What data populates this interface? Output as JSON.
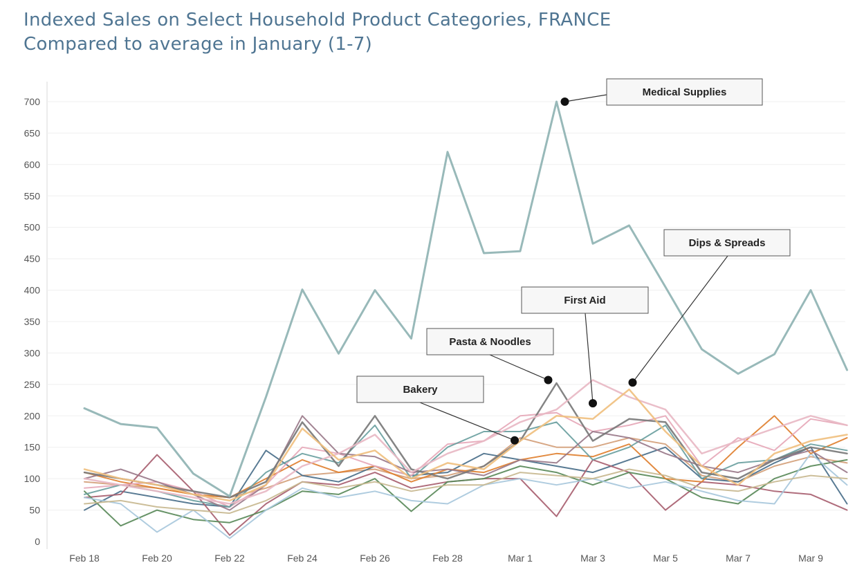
{
  "title": "Indexed Sales on Select Household Product Categories, FRANCE",
  "subtitle": "Compared to average in January (1-7)",
  "chart_data": {
    "type": "line",
    "x": [
      "Feb 18",
      "Feb 19",
      "Feb 20",
      "Feb 21",
      "Feb 22",
      "Feb 23",
      "Feb 24",
      "Feb 25",
      "Feb 26",
      "Feb 27",
      "Feb 28",
      "Feb 29",
      "Mar 1",
      "Mar 2",
      "Mar 3",
      "Mar 4",
      "Mar 5",
      "Mar 6",
      "Mar 7",
      "Mar 8",
      "Mar 9",
      "Mar 10"
    ],
    "x_tick_labels": [
      "Feb 18",
      "Feb 20",
      "Feb 22",
      "Feb 24",
      "Feb 26",
      "Feb 28",
      "Mar 1",
      "Mar 3",
      "Mar 5",
      "Mar 7",
      "Mar 9"
    ],
    "y_ticks": [
      0,
      50,
      100,
      150,
      200,
      250,
      300,
      350,
      400,
      450,
      500,
      550,
      600,
      650,
      700
    ],
    "ylim": [
      0,
      720
    ],
    "grid": "horizontal",
    "series": [
      {
        "name": "Medical Supplies",
        "color": "#8fb3b3",
        "width": 3,
        "values": [
          212,
          187,
          181,
          108,
          72,
          230,
          401,
          299,
          400,
          323,
          620,
          459,
          462,
          700,
          474,
          503,
          405,
          306,
          267,
          298,
          400,
          273
        ]
      },
      {
        "name": "Pasta & Noodles",
        "color": "#7a7a7a",
        "width": 2.5,
        "values": [
          110,
          100,
          90,
          80,
          70,
          95,
          190,
          120,
          200,
          115,
          100,
          120,
          160,
          252,
          160,
          195,
          190,
          110,
          100,
          130,
          150,
          140
        ]
      },
      {
        "name": "First Aid",
        "color": "#e8b8c4",
        "width": 2.5,
        "values": [
          100,
          90,
          80,
          70,
          60,
          80,
          120,
          140,
          170,
          110,
          140,
          160,
          190,
          210,
          257,
          230,
          210,
          140,
          160,
          180,
          200,
          185
        ]
      },
      {
        "name": "Dips & Spreads",
        "color": "#f0c080",
        "width": 2.5,
        "values": [
          115,
          100,
          90,
          75,
          65,
          90,
          180,
          130,
          145,
          100,
          125,
          115,
          160,
          200,
          195,
          242,
          175,
          120,
          90,
          140,
          160,
          170
        ]
      },
      {
        "name": "Bakery",
        "color": "#d4a07a",
        "width": 2,
        "values": [
          95,
          90,
          85,
          75,
          70,
          85,
          105,
          110,
          115,
          100,
          105,
          120,
          165,
          150,
          150,
          165,
          155,
          105,
          95,
          120,
          135,
          125
        ]
      },
      {
        "name": "",
        "color": "#4a6f8a",
        "width": 2,
        "values": [
          50,
          80,
          70,
          60,
          55,
          145,
          105,
          95,
          120,
          105,
          110,
          140,
          130,
          120,
          110,
          130,
          150,
          100,
          95,
          125,
          150,
          60
        ]
      },
      {
        "name": "",
        "color": "#a86070",
        "width": 2,
        "values": [
          70,
          75,
          138,
          80,
          10,
          60,
          95,
          90,
          110,
          85,
          95,
          100,
          100,
          40,
          130,
          110,
          50,
          95,
          90,
          80,
          75,
          50
        ]
      },
      {
        "name": "",
        "color": "#5a8a5a",
        "width": 2,
        "values": [
          80,
          25,
          50,
          35,
          30,
          50,
          80,
          75,
          100,
          48,
          95,
          100,
          120,
          110,
          90,
          110,
          100,
          70,
          60,
          100,
          120,
          130
        ]
      },
      {
        "name": "",
        "color": "#a8c8dc",
        "width": 2,
        "values": [
          70,
          60,
          15,
          50,
          5,
          50,
          85,
          70,
          80,
          65,
          60,
          90,
          100,
          90,
          100,
          85,
          95,
          80,
          65,
          60,
          140,
          90
        ]
      },
      {
        "name": "",
        "color": "#e08030",
        "width": 2,
        "values": [
          110,
          95,
          85,
          75,
          70,
          100,
          130,
          110,
          120,
          95,
          115,
          110,
          130,
          140,
          135,
          155,
          100,
          95,
          150,
          200,
          140,
          165
        ]
      },
      {
        "name": "",
        "color": "#e6a8b8",
        "width": 2,
        "values": [
          85,
          90,
          95,
          80,
          55,
          90,
          150,
          140,
          120,
          105,
          155,
          160,
          200,
          205,
          175,
          185,
          200,
          120,
          165,
          145,
          195,
          185
        ]
      },
      {
        "name": "",
        "color": "#6aa0a0",
        "width": 2,
        "values": [
          75,
          90,
          80,
          65,
          55,
          110,
          140,
          125,
          185,
          100,
          150,
          175,
          175,
          190,
          130,
          150,
          185,
          100,
          125,
          130,
          155,
          145
        ]
      },
      {
        "name": "",
        "color": "#9a7a8a",
        "width": 2,
        "values": [
          100,
          115,
          95,
          75,
          50,
          90,
          200,
          140,
          135,
          110,
          115,
          105,
          130,
          125,
          175,
          165,
          140,
          120,
          110,
          130,
          145,
          110
        ]
      },
      {
        "name": "",
        "color": "#c8b890",
        "width": 2,
        "values": [
          60,
          65,
          55,
          50,
          45,
          65,
          95,
          85,
          95,
          80,
          90,
          90,
          110,
          105,
          100,
          115,
          105,
          85,
          80,
          95,
          105,
          100
        ]
      }
    ],
    "annotations": [
      {
        "label": "Medical Supplies",
        "x_index": 13,
        "y": 700
      },
      {
        "label": "Dips & Spreads",
        "x_index": 15,
        "y": 253
      },
      {
        "label": "First Aid",
        "x_index": 14,
        "y": 220
      },
      {
        "label": "Pasta & Noodles",
        "x_index": 13,
        "y": 257
      },
      {
        "label": "Bakery",
        "x_index": 12,
        "y": 161
      }
    ]
  }
}
